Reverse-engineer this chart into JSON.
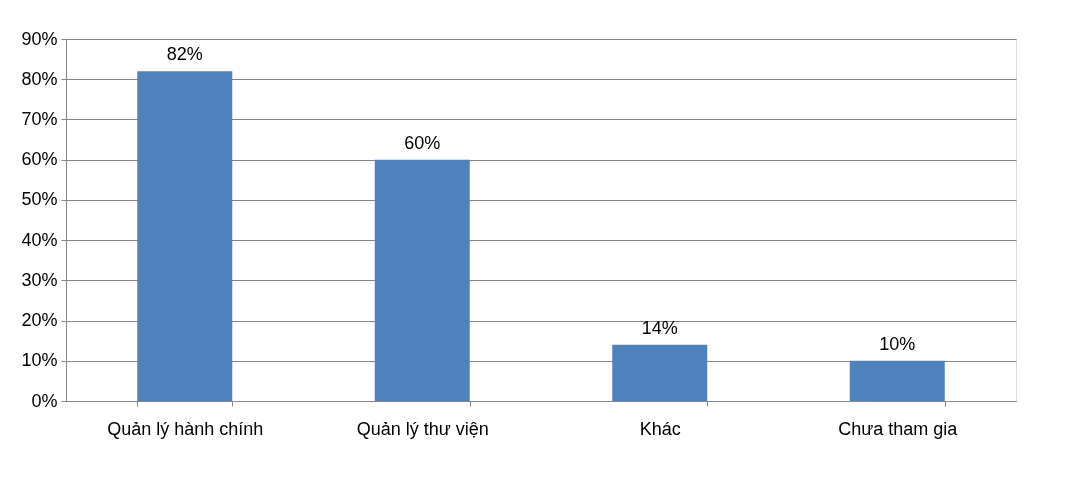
{
  "chart_data": {
    "type": "bar",
    "categories": [
      "Quản lý hành chính",
      "Quản lý thư viện",
      "Khác",
      "Chưa tham gia"
    ],
    "values": [
      82,
      60,
      14,
      10
    ],
    "value_labels": [
      "82%",
      "60%",
      "14%",
      "10%"
    ],
    "color": "#4f81bd",
    "ylim": [
      0,
      90
    ],
    "yticks": [
      {
        "value": 0,
        "label": "0%"
      },
      {
        "value": 10,
        "label": "10%"
      },
      {
        "value": 20,
        "label": "20%"
      },
      {
        "value": 30,
        "label": "30%"
      },
      {
        "value": 40,
        "label": "40%"
      },
      {
        "value": 50,
        "label": "50%"
      },
      {
        "value": 60,
        "label": "60%"
      },
      {
        "value": 70,
        "label": "70%"
      },
      {
        "value": 80,
        "label": "80%"
      },
      {
        "value": 90,
        "label": "90%"
      }
    ],
    "grid": "y"
  }
}
